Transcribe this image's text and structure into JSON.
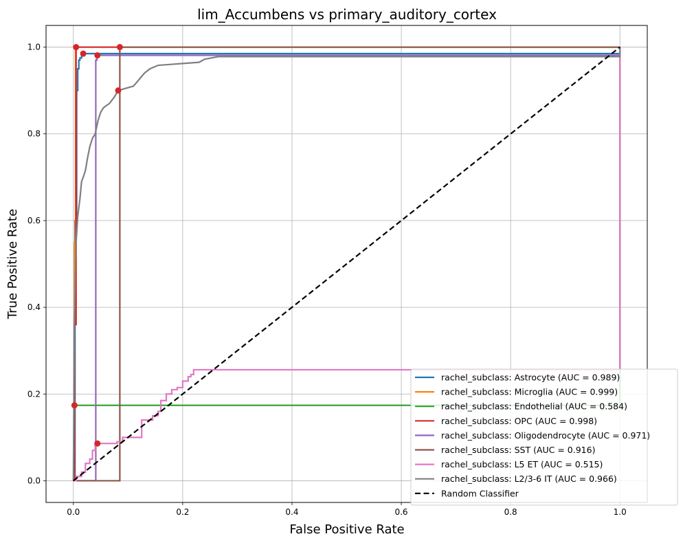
{
  "chart_data": {
    "type": "line",
    "title": "lim_Accumbens vs primary_auditory_cortex",
    "xlabel": "False Positive Rate",
    "ylabel": "True Positive Rate",
    "xlim": [
      -0.05,
      1.05
    ],
    "ylim": [
      -0.05,
      1.05
    ],
    "xticks": [
      "0.0",
      "0.2",
      "0.4",
      "0.6",
      "0.8",
      "1.0"
    ],
    "yticks": [
      "0.0",
      "0.2",
      "0.4",
      "0.6",
      "0.8",
      "1.0"
    ],
    "grid": true,
    "legend_position": "lower-right",
    "series": [
      {
        "name": "rachel_subclass: Astrocyte (AUC = 0.989)",
        "color": "#1f77b4",
        "x": [
          0,
          0.003,
          0.003,
          0.006,
          0.006,
          0.008,
          0.008,
          0.01,
          0.01,
          0.012,
          0.012,
          0.015,
          0.015,
          0.02,
          0.02,
          1.0,
          1.0
        ],
        "y": [
          0,
          0,
          0.6,
          0.6,
          0.9,
          0.9,
          0.95,
          0.95,
          0.97,
          0.97,
          0.975,
          0.975,
          0.98,
          0.98,
          0.985,
          0.985,
          1.0
        ]
      },
      {
        "name": "rachel_subclass: Microglia (AUC = 0.999)",
        "color": "#ff7f0e",
        "x": [
          0,
          0.002,
          0.002,
          0.004,
          0.004,
          1.0
        ],
        "y": [
          0,
          0,
          0.55,
          0.55,
          1.0,
          1.0
        ]
      },
      {
        "name": "rachel_subclass: Endothelial (AUC = 0.584)",
        "color": "#2ca02c",
        "x": [
          0,
          0.002,
          0.002,
          1.0,
          1.0
        ],
        "y": [
          0,
          0,
          0.174,
          0.174,
          1.0
        ]
      },
      {
        "name": "rachel_subclass: OPC (AUC = 0.998)",
        "color": "#d62728",
        "x": [
          0,
          0.002,
          0.002,
          0.005,
          0.005,
          1.0
        ],
        "y": [
          0,
          0,
          0.36,
          0.36,
          1.0,
          1.0
        ]
      },
      {
        "name": "rachel_subclass: Oligodendrocyte (AUC = 0.971)",
        "color": "#9467bd",
        "x": [
          0,
          0.041,
          0.041,
          0.043,
          0.043,
          1.0,
          1.0
        ],
        "y": [
          0,
          0,
          0.97,
          0.97,
          0.981,
          0.981,
          1.0
        ]
      },
      {
        "name": "rachel_subclass: SST (AUC = 0.916)",
        "color": "#8c564b",
        "x": [
          0,
          0.085,
          0.085,
          1.0
        ],
        "y": [
          0,
          0,
          1.0,
          1.0
        ]
      },
      {
        "name": "rachel_subclass: L5 ET (AUC = 0.515)",
        "color": "#e377c2",
        "x": [
          0,
          0.005,
          0.005,
          0.015,
          0.015,
          0.022,
          0.022,
          0.03,
          0.03,
          0.035,
          0.035,
          0.04,
          0.04,
          0.044,
          0.044,
          0.08,
          0.08,
          0.09,
          0.09,
          0.125,
          0.125,
          0.145,
          0.145,
          0.155,
          0.155,
          0.16,
          0.16,
          0.17,
          0.17,
          0.18,
          0.18,
          0.19,
          0.19,
          0.2,
          0.2,
          0.21,
          0.21,
          0.215,
          0.215,
          0.22,
          0.22,
          0.23,
          0.23,
          1.0,
          1.0
        ],
        "y": [
          0,
          0,
          0.01,
          0.01,
          0.02,
          0.02,
          0.04,
          0.04,
          0.05,
          0.05,
          0.07,
          0.07,
          0.086,
          0.086,
          0.086,
          0.086,
          0.09,
          0.09,
          0.1,
          0.1,
          0.14,
          0.14,
          0.15,
          0.15,
          0.16,
          0.16,
          0.185,
          0.185,
          0.2,
          0.2,
          0.21,
          0.21,
          0.215,
          0.215,
          0.23,
          0.23,
          0.24,
          0.24,
          0.245,
          0.245,
          0.256,
          0.256,
          0.256,
          0.256,
          1.0
        ]
      },
      {
        "name": "rachel_subclass: L2/3-6 IT (AUC = 0.966)",
        "color": "#7f7f7f",
        "x": [
          0,
          0.002,
          0.002,
          0.005,
          0.005,
          0.008,
          0.008,
          0.012,
          0.012,
          0.015,
          0.015,
          0.018,
          0.018,
          0.022,
          0.022,
          0.026,
          0.026,
          0.03,
          0.03,
          0.035,
          0.035,
          0.04,
          0.04,
          0.045,
          0.045,
          0.05,
          0.05,
          0.055,
          0.055,
          0.06,
          0.06,
          0.066,
          0.066,
          0.075,
          0.075,
          0.082,
          0.082,
          0.096,
          0.096,
          0.11,
          0.11,
          0.12,
          0.12,
          0.13,
          0.13,
          0.14,
          0.14,
          0.155,
          0.155,
          0.23,
          0.23,
          0.24,
          0.24,
          0.265,
          0.265,
          1.0,
          1.0
        ],
        "y": [
          0,
          0.37,
          0.37,
          0.55,
          0.55,
          0.61,
          0.61,
          0.65,
          0.65,
          0.69,
          0.69,
          0.7,
          0.7,
          0.715,
          0.715,
          0.745,
          0.745,
          0.77,
          0.77,
          0.79,
          0.79,
          0.8,
          0.8,
          0.83,
          0.83,
          0.85,
          0.85,
          0.86,
          0.86,
          0.865,
          0.865,
          0.87,
          0.87,
          0.885,
          0.885,
          0.9,
          0.9,
          0.905,
          0.905,
          0.91,
          0.91,
          0.925,
          0.925,
          0.94,
          0.94,
          0.95,
          0.95,
          0.958,
          0.958,
          0.965,
          0.965,
          0.972,
          0.972,
          0.978,
          0.978,
          0.978,
          1.0
        ]
      },
      {
        "name": "Random Classifier",
        "color": "#000000",
        "dashed": true,
        "x": [
          0,
          1
        ],
        "y": [
          0,
          1
        ]
      }
    ],
    "markers": {
      "color": "#d62728",
      "points": [
        {
          "x": 0.005,
          "y": 1.0
        },
        {
          "x": 0.018,
          "y": 0.985
        },
        {
          "x": 0.002,
          "y": 0.174
        },
        {
          "x": 0.044,
          "y": 0.981
        },
        {
          "x": 0.085,
          "y": 1.0
        },
        {
          "x": 0.044,
          "y": 0.086
        },
        {
          "x": 0.082,
          "y": 0.9
        }
      ]
    }
  }
}
